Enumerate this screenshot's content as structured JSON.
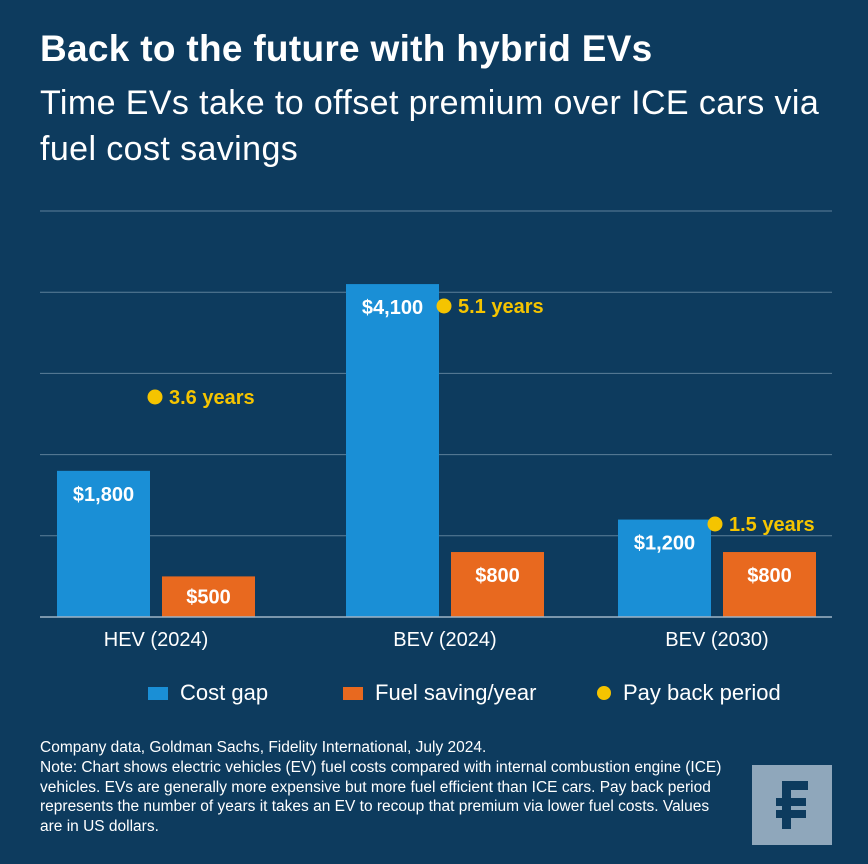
{
  "header": {
    "title": "Back to the future with hybrid EVs",
    "subtitle": "Time EVs take to offset premium over ICE cars via fuel cost savings"
  },
  "chart_data": {
    "type": "bar",
    "categories": [
      "HEV (2024)",
      "BEV (2024)",
      "BEV (2030)"
    ],
    "series": [
      {
        "name": "Cost gap",
        "values": [
          1800,
          4100,
          1200
        ],
        "labels": [
          "$1,800",
          "$4,100",
          "$1,200"
        ],
        "color": "#1a8fd6"
      },
      {
        "name": "Fuel saving/year",
        "values": [
          500,
          800,
          800
        ],
        "labels": [
          "$500",
          "$800",
          "$800"
        ],
        "color": "#e8691f"
      }
    ],
    "payback": {
      "name": "Pay back period",
      "values": [
        3.6,
        5.1,
        1.5
      ],
      "labels": [
        "3.6 years",
        "5.1 years",
        "1.5 years"
      ],
      "color": "#f5c400"
    },
    "ylim": [
      0,
      5000
    ],
    "grid": true,
    "legend_position": "bottom"
  },
  "footer": {
    "source": "Company data, Goldman Sachs, Fidelity International, July 2024.",
    "note": "Note: Chart shows electric vehicles (EV) fuel costs compared with internal combustion engine (ICE) vehicles. EVs are generally more expensive but more fuel efficient than ICE cars. Pay back period represents the number of years it takes an EV to recoup that premium via lower fuel costs. Values are in US dollars."
  },
  "logo": {
    "icon": "fidelity-logo-icon",
    "background": "#8fa7bb",
    "foreground": "#0d3b5e"
  }
}
